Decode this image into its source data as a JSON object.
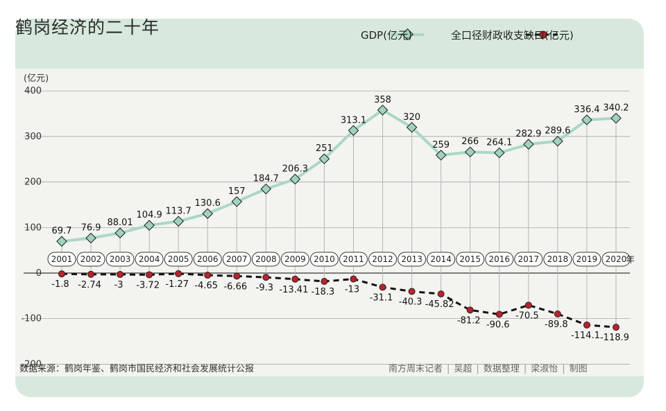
{
  "title": "鹤岗经济的二十年",
  "legend": {
    "gdp": "GDP(亿元)",
    "gap": "全口径财政收支缺口(亿元)"
  },
  "footer": {
    "source": "数据来源：鹤岗年鉴、鹤岗市国民经济和社会发展统计公报",
    "credits": [
      "南方周末记者",
      "吴超",
      "数据整理",
      "梁淑怡",
      "制图"
    ]
  },
  "colors": {
    "header_band": "#d6e9dc",
    "gdp_line": "#a9d8c5",
    "gdp_marker_fill": "#9fd3c0",
    "gap_line": "#111111",
    "gap_marker_fill": "#c0202a",
    "grid": "#9a9a9a",
    "stem": "#b5b5b5"
  },
  "chart_data": {
    "type": "line",
    "y_unit": "(亿元)",
    "x_unit": "年",
    "ylim": [
      -200,
      400
    ],
    "yticks": [
      400,
      300,
      200,
      100,
      0,
      -100,
      -200
    ],
    "grid": true,
    "categories": [
      "2001",
      "2002",
      "2003",
      "2004",
      "2005",
      "2006",
      "2007",
      "2008",
      "2009",
      "2010",
      "2011",
      "2012",
      "2013",
      "2014",
      "2015",
      "2016",
      "2017",
      "2018",
      "2019",
      "2020"
    ],
    "series": [
      {
        "name": "GDP(亿元)",
        "values": [
          69.7,
          76.9,
          88.01,
          104.9,
          113.7,
          130.6,
          157,
          184.7,
          206.3,
          251,
          313.1,
          358,
          320,
          259,
          266,
          264.1,
          282.9,
          289.6,
          336.4,
          340.2
        ],
        "labels": [
          "69.7",
          "76.9",
          "88.01",
          "104.9",
          "113.7",
          "130.6",
          "157",
          "184.7",
          "206.3",
          "251",
          "313.1",
          "358",
          "320",
          "259",
          "266",
          "264.1",
          "282.9",
          "289.6",
          "336.4",
          "340.2"
        ]
      },
      {
        "name": "全口径财政收支缺口(亿元)",
        "values": [
          -1.8,
          -2.74,
          -3,
          -3.72,
          -1.27,
          -4.65,
          -6.66,
          -9.3,
          -13.41,
          -18.3,
          -13,
          -31.1,
          -40.3,
          -45.82,
          -81.2,
          -90.6,
          -70.5,
          -89.8,
          -114.1,
          -118.9
        ],
        "labels": [
          "-1.8",
          "-2.74",
          "-3",
          "-3.72",
          "-1.27",
          "-4.65",
          "-6.66",
          "-9.3",
          "-13.41",
          "-18.3",
          "-13",
          "-31.1",
          "-40.3",
          "-45.82",
          "-81.2",
          "-90.6",
          "-70.5",
          "-89.8",
          "-114.1",
          "-118.9"
        ]
      }
    ]
  }
}
